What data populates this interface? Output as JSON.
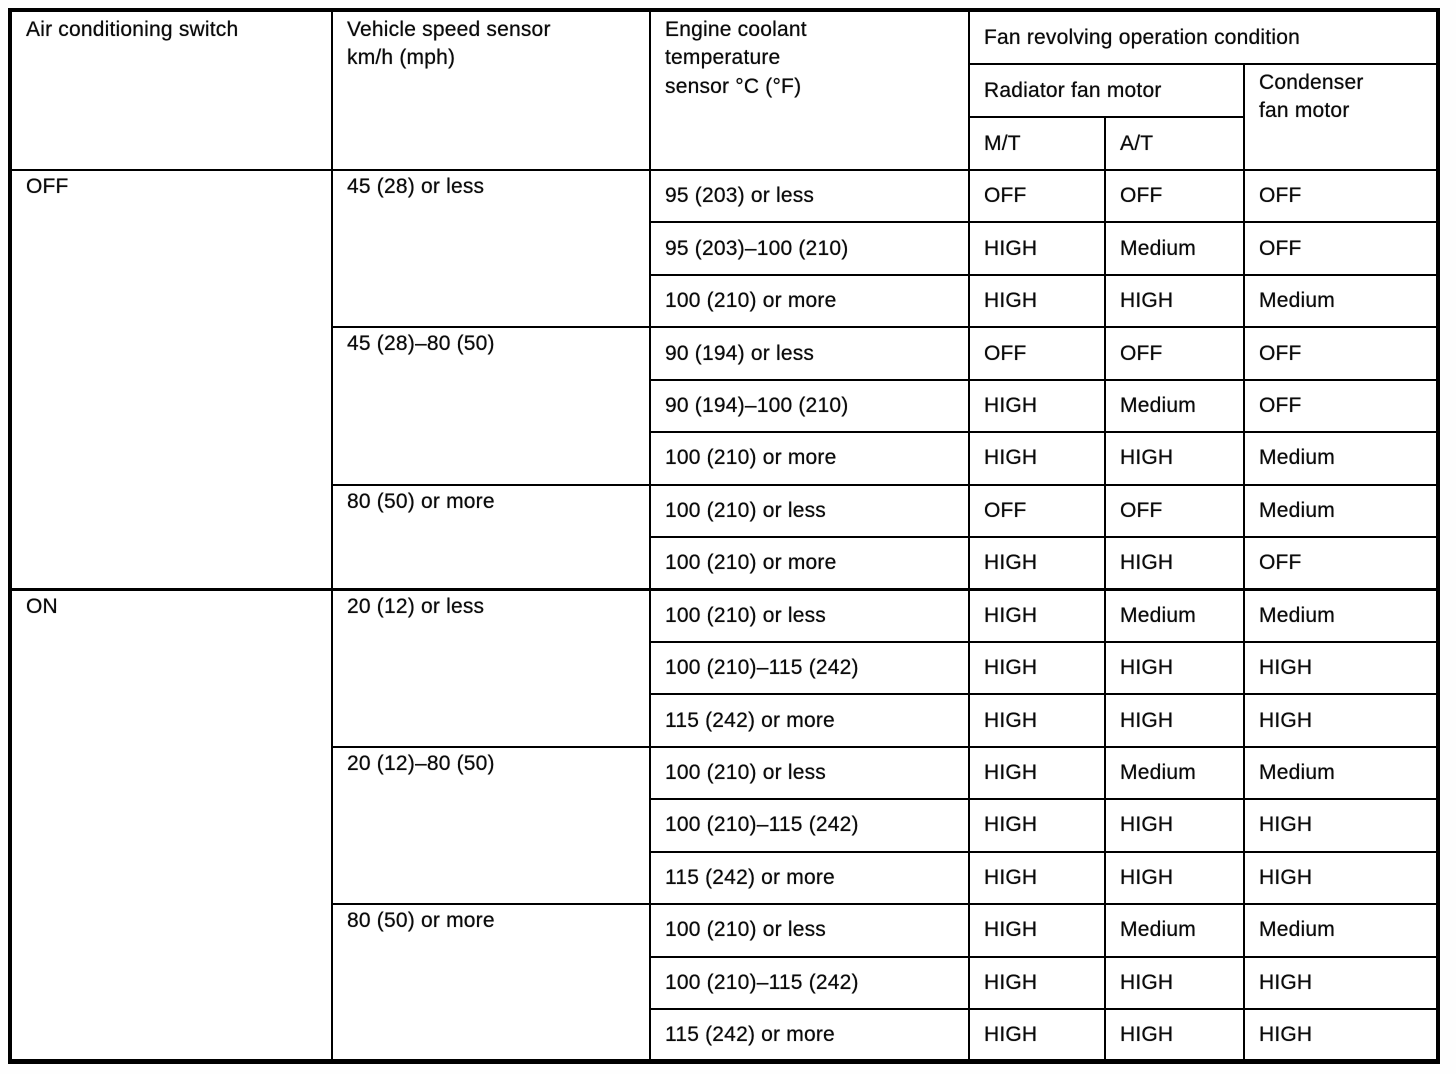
{
  "table": {
    "header": {
      "ac_switch": "Air conditioning switch",
      "speed_sensor": "Vehicle speed sensor\nkm/h (mph)",
      "coolant_sensor": "Engine coolant\ntemperature\nsensor °C (°F)",
      "fan_condition": "Fan revolving operation condition",
      "radiator_fan": "Radiator fan motor",
      "condenser_fan": "Condenser\nfan motor",
      "mt": "M/T",
      "at": "A/T"
    },
    "sections": [
      {
        "ac_switch": "OFF",
        "speed_groups": [
          {
            "speed": "45 (28) or less",
            "rows": [
              {
                "coolant": "95 (203) or less",
                "mt": "OFF",
                "at": "OFF",
                "condenser": "OFF"
              },
              {
                "coolant": "95 (203)–100 (210)",
                "mt": "HIGH",
                "at": "Medium",
                "condenser": "OFF"
              },
              {
                "coolant": "100 (210) or more",
                "mt": "HIGH",
                "at": "HIGH",
                "condenser": "Medium"
              }
            ]
          },
          {
            "speed": "45 (28)–80 (50)",
            "rows": [
              {
                "coolant": "90 (194) or less",
                "mt": "OFF",
                "at": "OFF",
                "condenser": "OFF"
              },
              {
                "coolant": "90 (194)–100 (210)",
                "mt": "HIGH",
                "at": "Medium",
                "condenser": "OFF"
              },
              {
                "coolant": "100 (210) or more",
                "mt": "HIGH",
                "at": "HIGH",
                "condenser": "Medium"
              }
            ]
          },
          {
            "speed": "80 (50) or more",
            "rows": [
              {
                "coolant": "100 (210) or less",
                "mt": "OFF",
                "at": "OFF",
                "condenser": "Medium"
              },
              {
                "coolant": "100 (210) or more",
                "mt": "HIGH",
                "at": "HIGH",
                "condenser": "OFF"
              }
            ]
          }
        ]
      },
      {
        "ac_switch": "ON",
        "speed_groups": [
          {
            "speed": "20 (12) or less",
            "rows": [
              {
                "coolant": "100 (210) or less",
                "mt": "HIGH",
                "at": "Medium",
                "condenser": "Medium"
              },
              {
                "coolant": "100 (210)–115 (242)",
                "mt": "HIGH",
                "at": "HIGH",
                "condenser": "HIGH"
              },
              {
                "coolant": "115 (242) or more",
                "mt": "HIGH",
                "at": "HIGH",
                "condenser": "HIGH"
              }
            ]
          },
          {
            "speed": "20 (12)–80 (50)",
            "rows": [
              {
                "coolant": "100 (210) or less",
                "mt": "HIGH",
                "at": "Medium",
                "condenser": "Medium"
              },
              {
                "coolant": "100 (210)–115 (242)",
                "mt": "HIGH",
                "at": "HIGH",
                "condenser": "HIGH"
              },
              {
                "coolant": "115 (242) or more",
                "mt": "HIGH",
                "at": "HIGH",
                "condenser": "HIGH"
              }
            ]
          },
          {
            "speed": "80 (50) or more",
            "rows": [
              {
                "coolant": "100 (210) or less",
                "mt": "HIGH",
                "at": "Medium",
                "condenser": "Medium"
              },
              {
                "coolant": "100 (210)–115 (242)",
                "mt": "HIGH",
                "at": "HIGH",
                "condenser": "HIGH"
              },
              {
                "coolant": "115 (242) or more",
                "mt": "HIGH",
                "at": "HIGH",
                "condenser": "HIGH"
              }
            ]
          }
        ]
      }
    ]
  },
  "colors": {
    "ink": "#0b0b0b",
    "paper": "#ffffff",
    "border": "#000000"
  }
}
